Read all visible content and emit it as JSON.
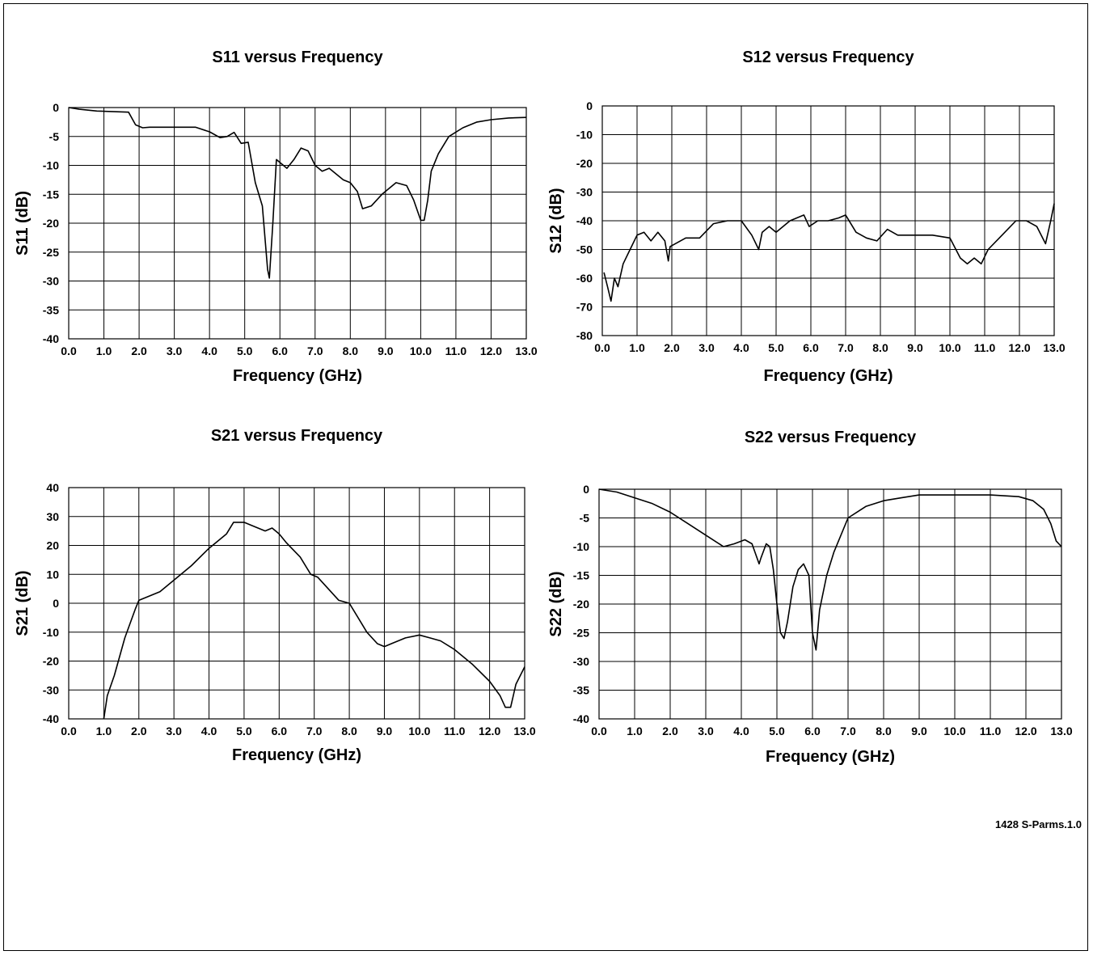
{
  "figure_id": "1428 S-Parms.1.0",
  "chart_data": [
    {
      "type": "line",
      "title": "S11 versus Frequency",
      "xlabel": "Frequency (GHz)",
      "ylabel": "S11 (dB)",
      "xlim": [
        0,
        13
      ],
      "ylim": [
        -40,
        0
      ],
      "xticks": [
        0,
        1,
        2,
        3,
        4,
        5,
        6,
        7,
        8,
        9,
        10,
        11,
        12,
        13
      ],
      "yticks": [
        0,
        -5,
        -10,
        -15,
        -20,
        -25,
        -30,
        -35,
        -40
      ],
      "xtick_labels": [
        "0.0",
        "1.0",
        "2.0",
        "3.0",
        "4.0",
        "5.0",
        "6.0",
        "7.0",
        "8.0",
        "9.0",
        "10.0",
        "11.0",
        "12.0",
        "13.0"
      ],
      "ytick_labels": [
        "0",
        "-5",
        "-10",
        "-15",
        "-20",
        "-25",
        "-30",
        "-35",
        "-40"
      ],
      "grid": true,
      "series": [
        {
          "x": [
            0,
            0.3,
            0.8,
            1.7,
            1.9,
            2.1,
            2.3,
            3.6,
            4.0,
            4.3,
            4.5,
            4.7,
            4.9,
            5.1,
            5.3,
            5.5,
            5.65,
            5.7,
            5.8,
            5.9,
            6.0,
            6.2,
            6.4,
            6.6,
            6.8,
            7.0,
            7.2,
            7.4,
            7.6,
            7.8,
            8.0,
            8.2,
            8.35,
            8.6,
            8.9,
            9.3,
            9.6,
            9.8,
            10.0,
            10.1,
            10.2,
            10.3,
            10.5,
            10.8,
            11.2,
            11.6,
            12.0,
            12.5,
            13.0
          ],
          "values": [
            0,
            -0.3,
            -0.6,
            -0.8,
            -3.0,
            -3.5,
            -3.4,
            -3.4,
            -4.2,
            -5.2,
            -5.0,
            -4.3,
            -6.2,
            -6.0,
            -13.0,
            -17.0,
            -28.0,
            -29.5,
            -20.0,
            -9.0,
            -9.5,
            -10.5,
            -9.0,
            -7.0,
            -7.5,
            -10.0,
            -11.0,
            -10.5,
            -11.5,
            -12.5,
            -13.0,
            -14.5,
            -17.5,
            -17.0,
            -15.0,
            -13.0,
            -13.5,
            -16.0,
            -19.5,
            -19.5,
            -16.0,
            -11.0,
            -8.0,
            -5.0,
            -3.5,
            -2.5,
            -2.1,
            -1.8,
            -1.7
          ]
        }
      ]
    },
    {
      "type": "line",
      "title": "S12 versus Frequency",
      "xlabel": "Frequency (GHz)",
      "ylabel": "S12 (dB)",
      "xlim": [
        0,
        13
      ],
      "ylim": [
        -80,
        0
      ],
      "xticks": [
        0,
        1,
        2,
        3,
        4,
        5,
        6,
        7,
        8,
        9,
        10,
        11,
        12,
        13
      ],
      "yticks": [
        0,
        -10,
        -20,
        -30,
        -40,
        -50,
        -60,
        -70,
        -80
      ],
      "xtick_labels": [
        "0.0",
        "1.0",
        "2.0",
        "3.0",
        "4.0",
        "5.0",
        "6.0",
        "7.0",
        "8.0",
        "9.0",
        "10.0",
        "11.0",
        "12.0",
        "13.0"
      ],
      "ytick_labels": [
        "0",
        "-10",
        "-20",
        "-30",
        "-40",
        "-50",
        "-60",
        "-70",
        "-80"
      ],
      "grid": true,
      "series": [
        {
          "x": [
            0.05,
            0.15,
            0.25,
            0.35,
            0.45,
            0.6,
            0.8,
            1.0,
            1.2,
            1.4,
            1.6,
            1.8,
            1.9,
            1.95,
            2.1,
            2.4,
            2.8,
            3.2,
            3.6,
            4.0,
            4.3,
            4.5,
            4.6,
            4.8,
            5.0,
            5.4,
            5.8,
            5.95,
            6.2,
            6.5,
            6.8,
            7.0,
            7.3,
            7.6,
            7.9,
            8.2,
            8.5,
            9.0,
            9.5,
            10.0,
            10.3,
            10.5,
            10.7,
            10.9,
            11.1,
            11.5,
            11.9,
            12.2,
            12.5,
            12.75,
            12.9,
            13.0
          ],
          "values": [
            -58,
            -63,
            -68,
            -60,
            -63,
            -55,
            -50,
            -45,
            -44,
            -47,
            -44,
            -47,
            -54,
            -49,
            -48,
            -46,
            -46,
            -41,
            -40,
            -40,
            -45,
            -50,
            -44,
            -42,
            -44,
            -40,
            -38,
            -42,
            -40,
            -40,
            -39,
            -38,
            -44,
            -46,
            -47,
            -43,
            -45,
            -45,
            -45,
            -46,
            -53,
            -55,
            -53,
            -55,
            -50,
            -45,
            -40,
            -40,
            -42,
            -48,
            -40,
            -34
          ]
        }
      ]
    },
    {
      "type": "line",
      "title": "S21 versus Frequency",
      "xlabel": "Frequency (GHz)",
      "ylabel": "S21 (dB)",
      "xlim": [
        0,
        13
      ],
      "ylim": [
        -40,
        40
      ],
      "xticks": [
        0,
        1,
        2,
        3,
        4,
        5,
        6,
        7,
        8,
        9,
        10,
        11,
        12,
        13
      ],
      "yticks": [
        40,
        30,
        20,
        10,
        0,
        -10,
        -20,
        -30,
        -40
      ],
      "xtick_labels": [
        "0.0",
        "1.0",
        "2.0",
        "3.0",
        "4.0",
        "5.0",
        "6.0",
        "7.0",
        "8.0",
        "9.0",
        "10.0",
        "11.0",
        "12.0",
        "13.0"
      ],
      "ytick_labels": [
        "40",
        "30",
        "20",
        "10",
        "0",
        "-10",
        "-20",
        "-30",
        "-40"
      ],
      "grid": true,
      "series": [
        {
          "x": [
            1.0,
            1.1,
            1.3,
            1.6,
            1.9,
            2.0,
            2.2,
            2.6,
            3.0,
            3.5,
            4.0,
            4.5,
            4.7,
            4.8,
            5.0,
            5.2,
            5.6,
            5.8,
            6.0,
            6.2,
            6.6,
            6.9,
            7.1,
            7.4,
            7.7,
            8.0,
            8.2,
            8.5,
            8.8,
            9.0,
            9.2,
            9.6,
            10.0,
            10.3,
            10.6,
            11.0,
            11.5,
            12.0,
            12.3,
            12.45,
            12.6,
            12.75,
            13.0
          ],
          "values": [
            -40,
            -32,
            -25,
            -12,
            -2,
            1,
            2,
            4,
            8,
            13,
            19,
            24,
            28,
            28,
            28,
            27,
            25,
            26,
            24,
            21,
            16,
            10,
            9,
            5,
            1,
            0,
            -4,
            -10,
            -14,
            -15,
            -14,
            -12,
            -11,
            -12,
            -13,
            -16,
            -21,
            -27,
            -32,
            -36,
            -36,
            -28,
            -22
          ]
        }
      ]
    },
    {
      "type": "line",
      "title": "S22 versus Frequency",
      "xlabel": "Frequency (GHz)",
      "ylabel": "S22 (dB)",
      "xlim": [
        0,
        13
      ],
      "ylim": [
        -40,
        0
      ],
      "xticks": [
        0,
        1,
        2,
        3,
        4,
        5,
        6,
        7,
        8,
        9,
        10,
        11,
        12,
        13
      ],
      "yticks": [
        0,
        -5,
        -10,
        -15,
        -20,
        -25,
        -30,
        -35,
        -40
      ],
      "xtick_labels": [
        "0.0",
        "1.0",
        "2.0",
        "3.0",
        "4.0",
        "5.0",
        "6.0",
        "7.0",
        "8.0",
        "9.0",
        "10.0",
        "11.0",
        "12.0",
        "13.0"
      ],
      "ytick_labels": [
        "0",
        "-5",
        "-10",
        "-15",
        "-20",
        "-25",
        "-30",
        "-35",
        "-40"
      ],
      "grid": true,
      "series": [
        {
          "x": [
            0,
            0.5,
            1.0,
            1.5,
            2.0,
            2.5,
            3.0,
            3.5,
            3.8,
            4.1,
            4.3,
            4.5,
            4.55,
            4.7,
            4.8,
            4.9,
            5.0,
            5.1,
            5.2,
            5.3,
            5.45,
            5.6,
            5.75,
            5.9,
            6.0,
            6.1,
            6.2,
            6.4,
            6.6,
            6.8,
            7.0,
            7.5,
            8.0,
            8.5,
            9.0,
            10.0,
            11.0,
            11.8,
            12.2,
            12.5,
            12.7,
            12.85,
            13.0
          ],
          "values": [
            0,
            -0.5,
            -1.5,
            -2.5,
            -4,
            -6,
            -8,
            -10,
            -9.5,
            -8.8,
            -9.5,
            -13,
            -12,
            -9.5,
            -10,
            -14,
            -20,
            -25,
            -26,
            -23,
            -17,
            -14,
            -13,
            -15,
            -25,
            -28,
            -21,
            -15,
            -11,
            -8,
            -5,
            -3,
            -2,
            -1.5,
            -1,
            -1,
            -1,
            -1.3,
            -2,
            -3.5,
            -6,
            -9,
            -10
          ]
        }
      ]
    }
  ]
}
